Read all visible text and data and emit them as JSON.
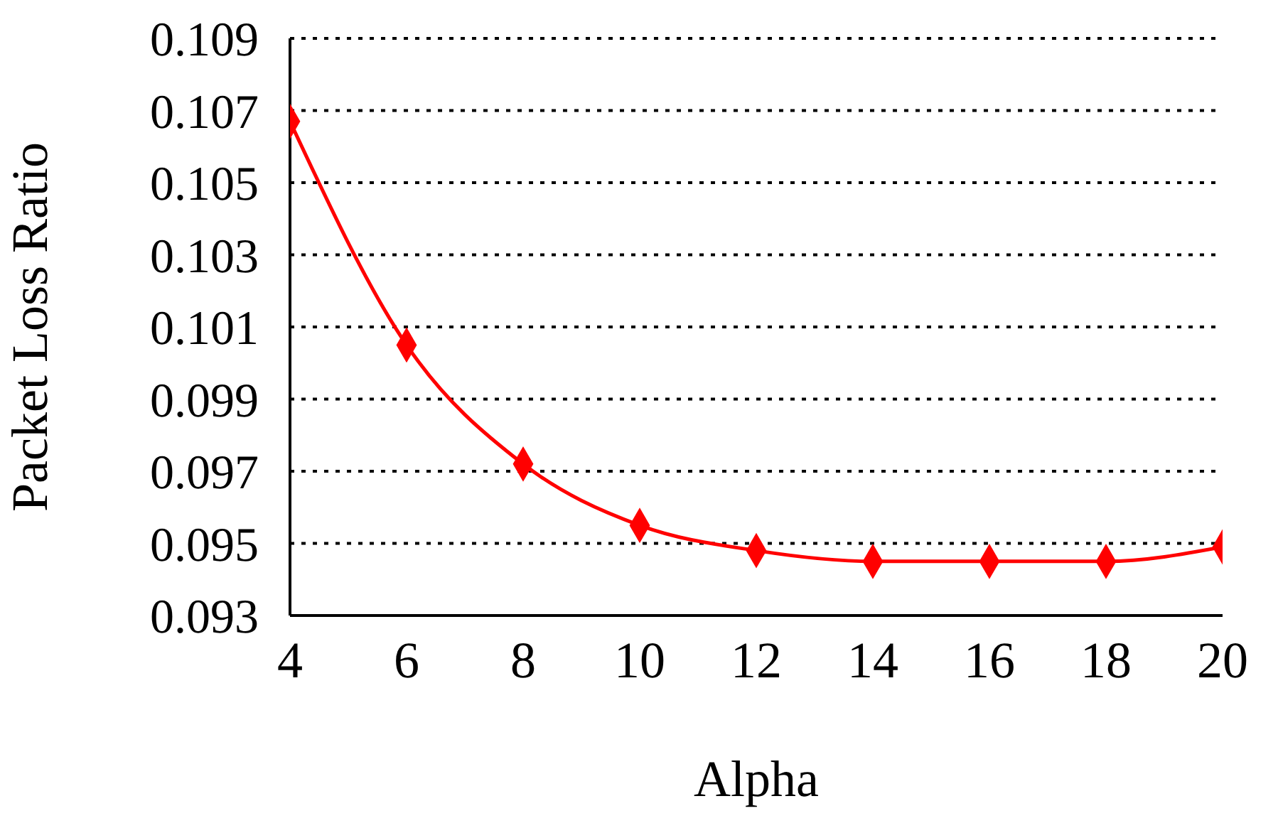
{
  "chart_data": {
    "type": "line",
    "xlabel": "Alpha",
    "ylabel": "Packet Loss Ratio",
    "x": [
      4,
      6,
      8,
      10,
      12,
      14,
      16,
      18,
      20
    ],
    "series": [
      {
        "color": "#ff0000",
        "values": [
          0.1067,
          0.1005,
          0.0972,
          0.0955,
          0.0948,
          0.0945,
          0.0945,
          0.0945,
          0.0949
        ]
      }
    ],
    "xlim": [
      4,
      20
    ],
    "xticks": [
      4,
      6,
      8,
      10,
      12,
      14,
      16,
      18,
      20
    ],
    "ylim": [
      0.093,
      0.109
    ],
    "yticks": [
      0.093,
      0.095,
      0.097,
      0.099,
      0.101,
      0.103,
      0.105,
      0.107,
      0.109
    ],
    "grid": "y",
    "legend": false,
    "marker": "diamond",
    "line_style": "solid"
  }
}
